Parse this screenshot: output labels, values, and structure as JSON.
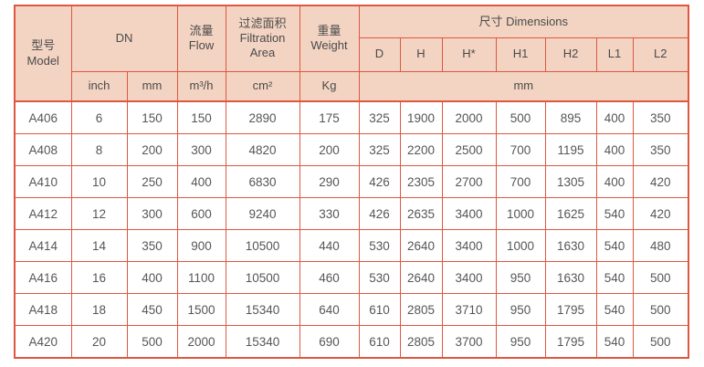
{
  "colors": {
    "header_bg": "#f3d4c3",
    "border": "#df5740",
    "header_text": "#4a4a4a",
    "cell_text": "#565656",
    "page_bg": "#ffffff"
  },
  "table": {
    "header": {
      "model_zh": "型号",
      "model_en": "Model",
      "dn": "DN",
      "flow_zh": "流量",
      "flow_en": "Flow",
      "filtration_zh": "过滤面积",
      "filtration_en1": "Filtration",
      "filtration_en2": "Area",
      "weight_zh": "重量",
      "weight_en": "Weight",
      "dimensions": "尺寸 Dimensions",
      "dim_cols": [
        "D",
        "H",
        "H*",
        "H1",
        "H2",
        "L1",
        "L2"
      ],
      "units": {
        "inch": "inch",
        "mm": "mm",
        "flow": "m³/h",
        "area": "cm²",
        "weight": "Kg",
        "dims": "mm"
      }
    },
    "rows": [
      {
        "model": "A406",
        "inch": "6",
        "mm": "150",
        "flow": "150",
        "area": "2890",
        "weight": "175",
        "dims": [
          "325",
          "1900",
          "2000",
          "500",
          "895",
          "400",
          "350"
        ]
      },
      {
        "model": "A408",
        "inch": "8",
        "mm": "200",
        "flow": "300",
        "area": "4820",
        "weight": "200",
        "dims": [
          "325",
          "2200",
          "2500",
          "700",
          "1195",
          "400",
          "350"
        ]
      },
      {
        "model": "A410",
        "inch": "10",
        "mm": "250",
        "flow": "400",
        "area": "6830",
        "weight": "290",
        "dims": [
          "426",
          "2305",
          "2700",
          "700",
          "1305",
          "400",
          "420"
        ]
      },
      {
        "model": "A412",
        "inch": "12",
        "mm": "300",
        "flow": "600",
        "area": "9240",
        "weight": "330",
        "dims": [
          "426",
          "2635",
          "3400",
          "1000",
          "1625",
          "540",
          "420"
        ]
      },
      {
        "model": "A414",
        "inch": "14",
        "mm": "350",
        "flow": "900",
        "area": "10500",
        "weight": "440",
        "dims": [
          "530",
          "2640",
          "3400",
          "1000",
          "1630",
          "540",
          "480"
        ]
      },
      {
        "model": "A416",
        "inch": "16",
        "mm": "400",
        "flow": "1100",
        "area": "10500",
        "weight": "460",
        "dims": [
          "530",
          "2640",
          "3400",
          "950",
          "1630",
          "540",
          "500"
        ]
      },
      {
        "model": "A418",
        "inch": "18",
        "mm": "450",
        "flow": "1500",
        "area": "15340",
        "weight": "640",
        "dims": [
          "610",
          "2805",
          "3710",
          "950",
          "1795",
          "540",
          "500"
        ]
      },
      {
        "model": "A420",
        "inch": "20",
        "mm": "500",
        "flow": "2000",
        "area": "15340",
        "weight": "690",
        "dims": [
          "610",
          "2805",
          "3700",
          "950",
          "1795",
          "540",
          "500"
        ]
      }
    ],
    "column_keys": [
      "model",
      "dn-inch",
      "dn-mm",
      "flow",
      "filtration-area",
      "weight",
      "dim-d",
      "dim-h",
      "dim-hstar",
      "dim-h1",
      "dim-h2",
      "dim-l1",
      "dim-l2"
    ]
  }
}
